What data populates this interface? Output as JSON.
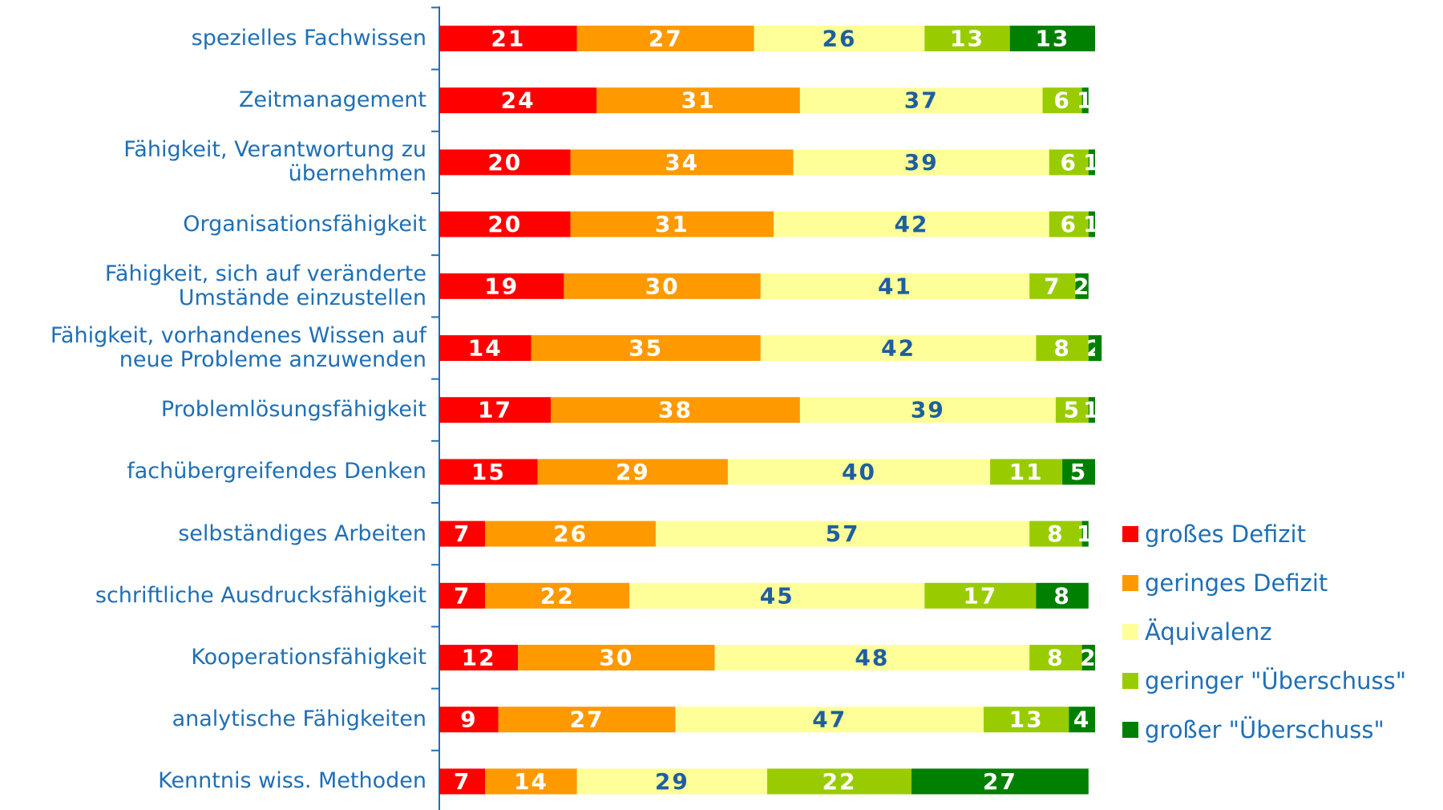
{
  "chart_data": {
    "type": "stacked-bar-horizontal",
    "categories": [
      "spezielles Fachwissen",
      "Zeitmanagement",
      "Fähigkeit, Verantwortung zu\nübernehmen",
      "Organisationsfähigkeit",
      "Fähigkeit, sich auf veränderte\nUmstände einzustellen",
      "Fähigkeit, vorhandenes Wissen auf\nneue Probleme anzuwenden",
      "Problemlösungsfähigkeit",
      "fachübergreifendes Denken",
      "selbständiges Arbeiten",
      "schriftliche Ausdrucksfähigkeit",
      "Kooperationsfähigkeit",
      "analytische Fähigkeiten",
      "Kenntnis wiss. Methoden"
    ],
    "series": [
      {
        "name": "großes Defizit",
        "color": "#ff0000",
        "text_color": "#ffffff",
        "values": [
          21,
          24,
          20,
          20,
          19,
          14,
          17,
          15,
          7,
          7,
          12,
          9,
          7
        ]
      },
      {
        "name": "geringes Defizit",
        "color": "#ff9900",
        "text_color": "#ffffff",
        "values": [
          27,
          31,
          34,
          31,
          30,
          35,
          38,
          29,
          26,
          22,
          30,
          27,
          14
        ]
      },
      {
        "name": "Äquivalenz",
        "color": "#ffff99",
        "text_color": "#1f5f9f",
        "values": [
          26,
          37,
          39,
          42,
          41,
          42,
          39,
          40,
          57,
          45,
          48,
          47,
          29
        ]
      },
      {
        "name": "geringer \"Überschuss\"",
        "color": "#99cc00",
        "text_color": "#ffffff",
        "values": [
          13,
          6,
          6,
          6,
          7,
          8,
          5,
          11,
          8,
          17,
          8,
          13,
          22
        ]
      },
      {
        "name": "großer \"Überschuss\"",
        "color": "#008000",
        "text_color": "#ffffff",
        "values": [
          13,
          1,
          1,
          1,
          2,
          2,
          1,
          5,
          1,
          8,
          2,
          4,
          27
        ]
      }
    ],
    "xlim": [
      0,
      100
    ],
    "legend": "right"
  }
}
